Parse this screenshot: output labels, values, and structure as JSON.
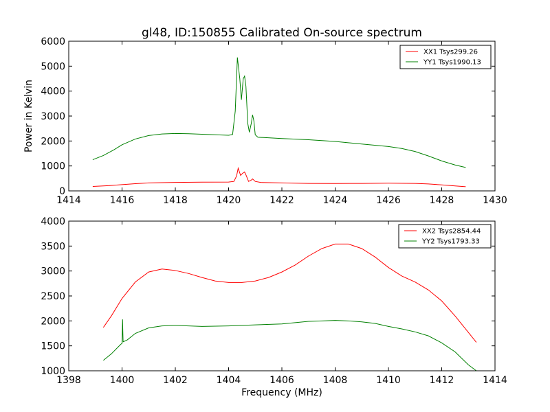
{
  "chart_data": [
    {
      "type": "line",
      "title": "gl48, ID:150855 Calibrated On-source spectrum",
      "xlabel": "",
      "ylabel": "Power in Kelvin",
      "xlim": [
        1414,
        1430
      ],
      "ylim": [
        0,
        6000
      ],
      "xticks": [
        1414,
        1416,
        1418,
        1420,
        1422,
        1424,
        1426,
        1428,
        1430
      ],
      "yticks": [
        0,
        1000,
        2000,
        3000,
        4000,
        5000,
        6000
      ],
      "legend_position": "top-right",
      "series": [
        {
          "name": "XX1 Tsys299.26",
          "color": "#ff0000",
          "points": [
            [
              1414.9,
              180
            ],
            [
              1415.5,
              210
            ],
            [
              1416.0,
              250
            ],
            [
              1416.5,
              290
            ],
            [
              1417.0,
              320
            ],
            [
              1418.0,
              340
            ],
            [
              1419.0,
              350
            ],
            [
              1420.0,
              355
            ],
            [
              1420.2,
              380
            ],
            [
              1420.3,
              600
            ],
            [
              1420.36,
              910
            ],
            [
              1420.45,
              620
            ],
            [
              1420.52,
              700
            ],
            [
              1420.6,
              760
            ],
            [
              1420.66,
              620
            ],
            [
              1420.75,
              380
            ],
            [
              1420.85,
              430
            ],
            [
              1420.9,
              480
            ],
            [
              1421.0,
              380
            ],
            [
              1421.2,
              340
            ],
            [
              1422.0,
              320
            ],
            [
              1423.0,
              300
            ],
            [
              1424.0,
              295
            ],
            [
              1425.0,
              300
            ],
            [
              1426.0,
              310
            ],
            [
              1427.0,
              300
            ],
            [
              1427.5,
              280
            ],
            [
              1428.0,
              240
            ],
            [
              1428.5,
              200
            ],
            [
              1428.9,
              170
            ]
          ]
        },
        {
          "name": "YY1 Tsys1990.13",
          "color": "#008000",
          "points": [
            [
              1414.9,
              1250
            ],
            [
              1415.3,
              1420
            ],
            [
              1415.7,
              1650
            ],
            [
              1416.0,
              1850
            ],
            [
              1416.5,
              2080
            ],
            [
              1417.0,
              2220
            ],
            [
              1417.5,
              2280
            ],
            [
              1418.0,
              2300
            ],
            [
              1418.5,
              2290
            ],
            [
              1419.0,
              2270
            ],
            [
              1419.5,
              2250
            ],
            [
              1420.0,
              2230
            ],
            [
              1420.15,
              2260
            ],
            [
              1420.25,
              3200
            ],
            [
              1420.33,
              5350
            ],
            [
              1420.42,
              4500
            ],
            [
              1420.48,
              3650
            ],
            [
              1420.55,
              4500
            ],
            [
              1420.6,
              4600
            ],
            [
              1420.65,
              4200
            ],
            [
              1420.72,
              2700
            ],
            [
              1420.78,
              2350
            ],
            [
              1420.85,
              2700
            ],
            [
              1420.9,
              3050
            ],
            [
              1420.95,
              2800
            ],
            [
              1421.0,
              2250
            ],
            [
              1421.1,
              2150
            ],
            [
              1422.0,
              2100
            ],
            [
              1423.0,
              2050
            ],
            [
              1424.0,
              1980
            ],
            [
              1425.0,
              1880
            ],
            [
              1426.0,
              1780
            ],
            [
              1426.5,
              1700
            ],
            [
              1427.0,
              1580
            ],
            [
              1427.5,
              1400
            ],
            [
              1428.0,
              1200
            ],
            [
              1428.5,
              1040
            ],
            [
              1428.9,
              940
            ]
          ]
        }
      ]
    },
    {
      "type": "line",
      "title": "",
      "xlabel": "Frequency (MHz)",
      "ylabel": "",
      "xlim": [
        1398,
        1414
      ],
      "ylim": [
        1000,
        4000
      ],
      "xticks": [
        1398,
        1400,
        1402,
        1404,
        1406,
        1408,
        1410,
        1412,
        1414
      ],
      "yticks": [
        1000,
        1500,
        2000,
        2500,
        3000,
        3500,
        4000
      ],
      "legend_position": "top-right",
      "series": [
        {
          "name": "XX2 Tsys2854.44",
          "color": "#ff0000",
          "points": [
            [
              1399.3,
              1870
            ],
            [
              1399.6,
              2100
            ],
            [
              1400.0,
              2450
            ],
            [
              1400.5,
              2780
            ],
            [
              1401.0,
              2980
            ],
            [
              1401.5,
              3040
            ],
            [
              1402.0,
              3010
            ],
            [
              1402.5,
              2950
            ],
            [
              1403.0,
              2870
            ],
            [
              1403.5,
              2800
            ],
            [
              1404.0,
              2770
            ],
            [
              1404.5,
              2770
            ],
            [
              1405.0,
              2800
            ],
            [
              1405.5,
              2870
            ],
            [
              1406.0,
              2980
            ],
            [
              1406.5,
              3120
            ],
            [
              1407.0,
              3300
            ],
            [
              1407.5,
              3450
            ],
            [
              1408.0,
              3540
            ],
            [
              1408.5,
              3540
            ],
            [
              1409.0,
              3450
            ],
            [
              1409.5,
              3280
            ],
            [
              1410.0,
              3070
            ],
            [
              1410.5,
              2900
            ],
            [
              1411.0,
              2780
            ],
            [
              1411.5,
              2620
            ],
            [
              1412.0,
              2400
            ],
            [
              1412.5,
              2100
            ],
            [
              1413.0,
              1770
            ],
            [
              1413.3,
              1570
            ]
          ]
        },
        {
          "name": "YY2 Tsys1793.33",
          "color": "#008000",
          "points": [
            [
              1399.3,
              1210
            ],
            [
              1399.6,
              1340
            ],
            [
              1399.95,
              1530
            ],
            [
              1400.0,
              1550
            ],
            [
              1400.02,
              2030
            ],
            [
              1400.04,
              1580
            ],
            [
              1400.2,
              1620
            ],
            [
              1400.5,
              1750
            ],
            [
              1401.0,
              1860
            ],
            [
              1401.5,
              1900
            ],
            [
              1402.0,
              1910
            ],
            [
              1403.0,
              1890
            ],
            [
              1404.0,
              1900
            ],
            [
              1404.5,
              1910
            ],
            [
              1405.0,
              1920
            ],
            [
              1406.0,
              1940
            ],
            [
              1407.0,
              1990
            ],
            [
              1407.5,
              2000
            ],
            [
              1408.0,
              2010
            ],
            [
              1408.5,
              2000
            ],
            [
              1409.0,
              1980
            ],
            [
              1409.5,
              1950
            ],
            [
              1410.0,
              1890
            ],
            [
              1410.5,
              1840
            ],
            [
              1411.0,
              1780
            ],
            [
              1411.5,
              1700
            ],
            [
              1412.0,
              1560
            ],
            [
              1412.5,
              1380
            ],
            [
              1413.0,
              1120
            ],
            [
              1413.3,
              1000
            ]
          ]
        }
      ]
    }
  ]
}
